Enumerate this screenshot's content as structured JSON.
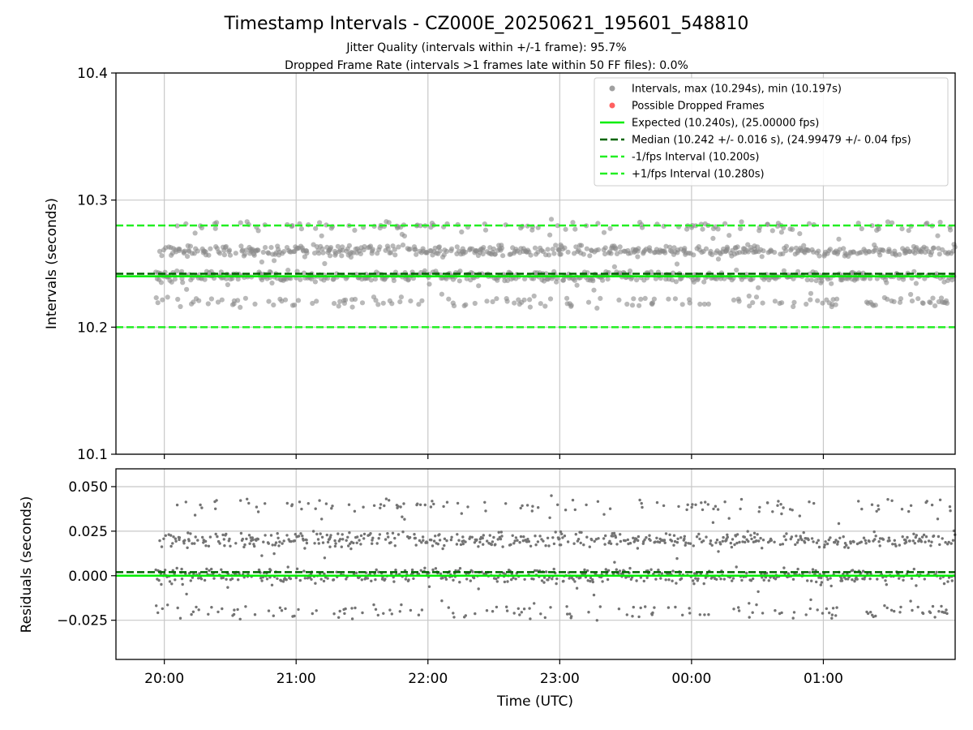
{
  "chart_data": [
    {
      "type": "scatter",
      "title": "Timestamp Intervals - CZ000E_20250621_195601_548810",
      "subtitle_1": "Jitter Quality (intervals within +/-1 frame): 95.7%",
      "subtitle_2": "Dropped Frame Rate (intervals >1 frames late within 50 FF files): 0.0%",
      "ylabel": "Intervals (seconds)",
      "xlabel": "",
      "ylim": [
        10.1,
        10.4
      ],
      "yticks": [
        "10.1",
        "10.2",
        "10.3",
        "10.4"
      ],
      "xlim_hours": [
        19.633,
        26.0
      ],
      "xtick_hours": [
        20,
        21,
        22,
        23,
        24,
        25
      ],
      "grid": true,
      "legend_position": "top-right",
      "legend": [
        "Intervals, max (10.294s), min (10.197s)",
        "Possible Dropped Frames",
        "Expected (10.240s), (25.00000 fps)",
        "Median (10.242 +/- 0.016 s), (24.99479 +/- 0.04 fps)",
        "-1/fps Interval (10.200s)",
        "+1/fps Interval (10.280s)"
      ],
      "reference_lines": {
        "expected": 10.24,
        "median": 10.242,
        "minus_1fps": 10.2,
        "plus_1fps": 10.28
      },
      "series": [
        {
          "name": "Intervals, max (10.294s), min (10.197s)",
          "x_range_utc": [
            "19:56",
            "02:00"
          ],
          "value_clusters": [
            10.22,
            10.24,
            10.26,
            10.28
          ],
          "max": 10.294,
          "min": 10.197
        },
        {
          "name": "Possible Dropped Frames",
          "values": []
        }
      ],
      "colors": {
        "points": "#8a8a8a",
        "dropped": "#ff4d4d",
        "expected": "#00ee00",
        "median": "#006400",
        "fps_bounds": "#22ee22"
      }
    },
    {
      "type": "scatter",
      "ylabel": "Residuals (seconds)",
      "xlabel": "Time (UTC)",
      "ylim": [
        -0.047,
        0.06
      ],
      "yticks": [
        "−0.025",
        "0.000",
        "0.025",
        "0.050"
      ],
      "xtick_labels": [
        "20:00",
        "21:00",
        "22:00",
        "23:00",
        "00:00",
        "01:00"
      ],
      "grid": true,
      "reference_lines": {
        "zero": 0.0,
        "median_offset": 0.002
      },
      "series": [
        {
          "name": "",
          "value_clusters": [
            -0.02,
            0.0,
            0.02,
            0.04
          ],
          "max": 0.054,
          "min": -0.043
        }
      ],
      "colors": {
        "points": "#737373",
        "zero": "#00ee00",
        "median": "#006400"
      }
    }
  ]
}
